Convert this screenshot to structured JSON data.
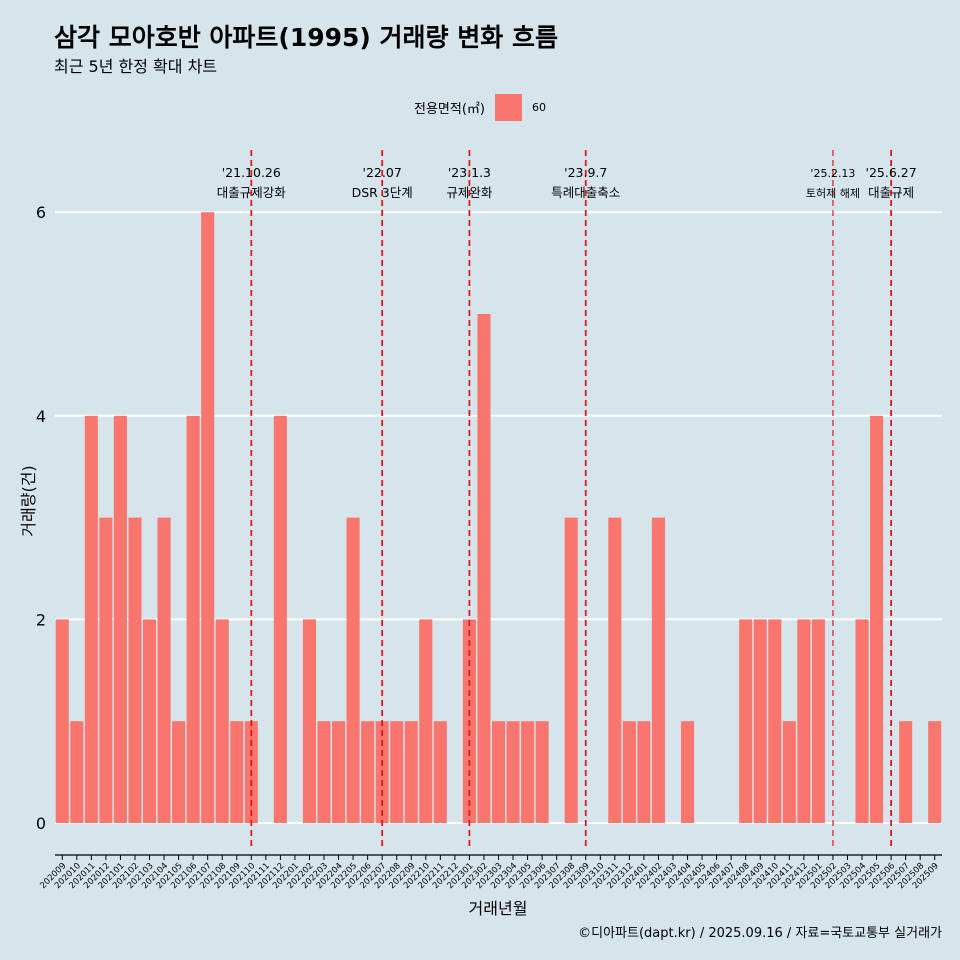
{
  "chart_data": {
    "type": "bar",
    "title": "삼각 모아호반 아파트(1995) 거래량 변화 흐름",
    "subtitle": "최근 5년 한정 확대 차트",
    "xlabel": "거래년월",
    "ylabel": "거래량(건)",
    "ylim": [
      0,
      6.2
    ],
    "yticks": [
      0,
      2,
      4,
      6
    ],
    "grid": "horizontal",
    "legend_title": "전용면적(㎡)",
    "legend_position": "top",
    "series": [
      {
        "name": "60",
        "color": "#f8766d",
        "values": [
          2,
          1,
          4,
          3,
          4,
          3,
          2,
          3,
          1,
          4,
          6,
          2,
          1,
          1,
          0,
          4,
          0,
          2,
          1,
          1,
          3,
          1,
          1,
          1,
          1,
          2,
          1,
          0,
          2,
          5,
          1,
          1,
          1,
          1,
          0,
          3,
          0,
          0,
          3,
          1,
          1,
          3,
          0,
          1,
          0,
          0,
          0,
          2,
          2,
          2,
          1,
          2,
          2,
          0,
          0,
          2,
          4,
          0,
          1,
          0,
          1
        ]
      }
    ],
    "categories": [
      "202009",
      "202010",
      "202011",
      "202012",
      "202101",
      "202102",
      "202103",
      "202104",
      "202105",
      "202106",
      "202107",
      "202108",
      "202109",
      "202110",
      "202111",
      "202112",
      "202201",
      "202202",
      "202203",
      "202204",
      "202205",
      "202206",
      "202207",
      "202208",
      "202209",
      "202210",
      "202211",
      "202212",
      "202301",
      "202302",
      "202303",
      "202304",
      "202305",
      "202306",
      "202307",
      "202308",
      "202309",
      "202310",
      "202311",
      "202312",
      "202401",
      "202402",
      "202403",
      "202404",
      "202405",
      "202406",
      "202407",
      "202408",
      "202409",
      "202410",
      "202411",
      "202412",
      "202501",
      "202502",
      "202503",
      "202504",
      "202505",
      "202506",
      "202507",
      "202508",
      "202509"
    ],
    "annotations": [
      {
        "date": "'21.10.26",
        "label": "대출규제강화",
        "x_category": "202110",
        "small": false
      },
      {
        "date": "'22.07",
        "label": "DSR 3단계",
        "x_category": "202207",
        "small": false
      },
      {
        "date": "'23.1.3",
        "label": "규제완화",
        "x_category": "202301",
        "small": false
      },
      {
        "date": "'23.9.7",
        "label": "특례대출축소",
        "x_category": "202309",
        "small": false
      },
      {
        "date": "'25.2.13",
        "label": "토허제 해제",
        "x_category": "202502",
        "small": true
      },
      {
        "date": "'25.6.27",
        "label": "대출규제",
        "x_category": "202506",
        "small": false
      }
    ],
    "annotation_color": "#e8141b",
    "grid_color": "#ffffff",
    "background_color": "#d6e4ec"
  },
  "caption": "©디아파트(dapt.kr) / 2025.09.16 / 자료=국토교통부 실거래가"
}
